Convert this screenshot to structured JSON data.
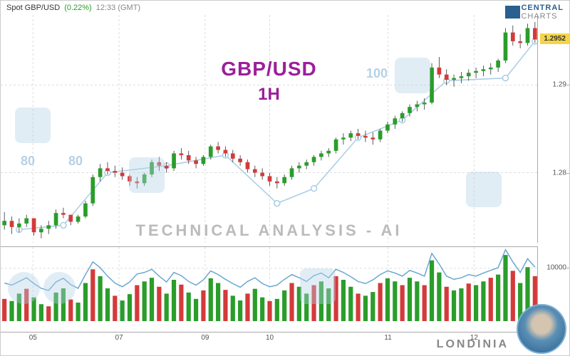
{
  "header": {
    "symbol": "Spot GBP/USD",
    "change_pct": "(0.22%)",
    "time": "12:33 (GMT)"
  },
  "logo": {
    "brand_bold": "CENTRAL",
    "brand_light": "CHARTS"
  },
  "overlay": {
    "symbol": "GBP/USD",
    "timeframe": "1H",
    "tech": "TECHNICAL  ANALYSIS - AI"
  },
  "footer": {
    "brand": "LONDINIA"
  },
  "colors": {
    "title": "#9b1f9b",
    "up": "#2a9d2a",
    "down": "#d43a3a",
    "wick": "#333333",
    "trend_line": "#a8cde5",
    "trend_marker": "#a8cde5",
    "vol_line": "#6aa8d0",
    "grid": "#dddddd",
    "axis": "#aaaaaa",
    "badge_bg": "#f5d547",
    "watermark": "rgba(180,210,230,0.45)"
  },
  "main_chart": {
    "type": "candlestick",
    "ylim": [
      1.272,
      1.298
    ],
    "yticks": [
      1.28,
      1.29
    ],
    "current_price": 1.2952,
    "candles": [
      [
        1.274,
        1.2755,
        1.2735,
        1.2745
      ],
      [
        1.2745,
        1.275,
        1.273,
        1.2738
      ],
      [
        1.2738,
        1.2748,
        1.2732,
        1.2742
      ],
      [
        1.2742,
        1.2752,
        1.2738,
        1.2748
      ],
      [
        1.2748,
        1.2745,
        1.2728,
        1.2732
      ],
      [
        1.2732,
        1.274,
        1.2725,
        1.2736
      ],
      [
        1.2736,
        1.2745,
        1.273,
        1.274
      ],
      [
        1.274,
        1.2758,
        1.2736,
        1.2754
      ],
      [
        1.2754,
        1.276,
        1.2748,
        1.2752
      ],
      [
        1.2752,
        1.275,
        1.274,
        1.2744
      ],
      [
        1.2744,
        1.2752,
        1.2742,
        1.275
      ],
      [
        1.275,
        1.2768,
        1.2748,
        1.2765
      ],
      [
        1.2765,
        1.2798,
        1.2762,
        1.2795
      ],
      [
        1.2795,
        1.281,
        1.279,
        1.2805
      ],
      [
        1.2805,
        1.2812,
        1.2798,
        1.2802
      ],
      [
        1.2802,
        1.2808,
        1.2795,
        1.28
      ],
      [
        1.28,
        1.2806,
        1.2792,
        1.2796
      ],
      [
        1.2796,
        1.2798,
        1.2785,
        1.279
      ],
      [
        1.279,
        1.2795,
        1.2782,
        1.2788
      ],
      [
        1.2788,
        1.28,
        1.2785,
        1.2798
      ],
      [
        1.2798,
        1.2815,
        1.2795,
        1.2812
      ],
      [
        1.2812,
        1.2818,
        1.2802,
        1.2808
      ],
      [
        1.2808,
        1.2812,
        1.28,
        1.2805
      ],
      [
        1.2805,
        1.2825,
        1.2802,
        1.2822
      ],
      [
        1.2822,
        1.2828,
        1.2815,
        1.282
      ],
      [
        1.282,
        1.2825,
        1.281,
        1.2814
      ],
      [
        1.2814,
        1.2818,
        1.2805,
        1.281
      ],
      [
        1.281,
        1.282,
        1.2808,
        1.2818
      ],
      [
        1.2818,
        1.2832,
        1.2815,
        1.283
      ],
      [
        1.283,
        1.2835,
        1.2822,
        1.2826
      ],
      [
        1.2826,
        1.283,
        1.2818,
        1.2822
      ],
      [
        1.2822,
        1.2826,
        1.2812,
        1.2816
      ],
      [
        1.2816,
        1.282,
        1.2808,
        1.2812
      ],
      [
        1.2812,
        1.2815,
        1.28,
        1.2804
      ],
      [
        1.2804,
        1.2808,
        1.2795,
        1.28
      ],
      [
        1.28,
        1.2805,
        1.2792,
        1.2796
      ],
      [
        1.2796,
        1.28,
        1.2785,
        1.279
      ],
      [
        1.279,
        1.2795,
        1.2782,
        1.2788
      ],
      [
        1.2788,
        1.2798,
        1.2785,
        1.2795
      ],
      [
        1.2795,
        1.2808,
        1.2792,
        1.2805
      ],
      [
        1.2805,
        1.2812,
        1.28,
        1.2808
      ],
      [
        1.2808,
        1.2815,
        1.2804,
        1.2812
      ],
      [
        1.2812,
        1.282,
        1.2808,
        1.2818
      ],
      [
        1.2818,
        1.2825,
        1.2814,
        1.2822
      ],
      [
        1.2822,
        1.2828,
        1.2818,
        1.2825
      ],
      [
        1.2825,
        1.284,
        1.2822,
        1.2838
      ],
      [
        1.2838,
        1.2845,
        1.2832,
        1.284
      ],
      [
        1.284,
        1.2848,
        1.2836,
        1.2845
      ],
      [
        1.2845,
        1.285,
        1.2838,
        1.2842
      ],
      [
        1.2842,
        1.2848,
        1.2835,
        1.284
      ],
      [
        1.284,
        1.2846,
        1.2832,
        1.2838
      ],
      [
        1.2838,
        1.285,
        1.2835,
        1.2848
      ],
      [
        1.2848,
        1.2858,
        1.2845,
        1.2855
      ],
      [
        1.2855,
        1.2865,
        1.285,
        1.2862
      ],
      [
        1.2862,
        1.287,
        1.2858,
        1.2868
      ],
      [
        1.2868,
        1.2878,
        1.2864,
        1.2875
      ],
      [
        1.2875,
        1.2882,
        1.287,
        1.2878
      ],
      [
        1.2878,
        1.2885,
        1.2872,
        1.288
      ],
      [
        1.288,
        1.2925,
        1.2878,
        1.292
      ],
      [
        1.292,
        1.2932,
        1.2908,
        1.2912
      ],
      [
        1.2912,
        1.2918,
        1.29,
        1.2906
      ],
      [
        1.2906,
        1.2912,
        1.2898,
        1.2908
      ],
      [
        1.2908,
        1.2915,
        1.2902,
        1.291
      ],
      [
        1.291,
        1.2918,
        1.2905,
        1.2914
      ],
      [
        1.2914,
        1.292,
        1.2908,
        1.2916
      ],
      [
        1.2916,
        1.2922,
        1.291,
        1.2918
      ],
      [
        1.2918,
        1.2925,
        1.2912,
        1.292
      ],
      [
        1.292,
        1.293,
        1.2915,
        1.2928
      ],
      [
        1.2928,
        1.2965,
        1.2925,
        1.296
      ],
      [
        1.296,
        1.2968,
        1.2945,
        1.295
      ],
      [
        1.295,
        1.2958,
        1.2942,
        1.2948
      ],
      [
        1.2948,
        1.297,
        1.2945,
        1.2965
      ],
      [
        1.2965,
        1.2972,
        1.2948,
        1.2952
      ]
    ],
    "trend_points": [
      [
        2,
        1.2735
      ],
      [
        8,
        1.274
      ],
      [
        14,
        1.28
      ],
      [
        22,
        1.2808
      ],
      [
        30,
        1.282
      ],
      [
        37,
        1.2765
      ],
      [
        42,
        1.2782
      ],
      [
        48,
        1.284
      ],
      [
        54,
        1.286
      ],
      [
        60,
        1.2905
      ],
      [
        68,
        1.2908
      ],
      [
        72,
        1.295
      ]
    ]
  },
  "volume_chart": {
    "type": "bar+line",
    "ylim": [
      0,
      14000
    ],
    "yticks": [
      10000
    ],
    "bars": [
      4200,
      3800,
      5200,
      6100,
      4500,
      3200,
      2800,
      5400,
      6200,
      4100,
      3500,
      7200,
      9800,
      8500,
      6200,
      4800,
      3900,
      5100,
      6800,
      7500,
      8200,
      6500,
      5200,
      7800,
      6900,
      5400,
      4200,
      5800,
      8100,
      7200,
      5900,
      4800,
      3900,
      5200,
      6100,
      4500,
      3800,
      4200,
      5800,
      7200,
      6500,
      5200,
      6800,
      7500,
      6200,
      8500,
      7800,
      6500,
      5200,
      4800,
      5500,
      7200,
      8100,
      7500,
      6800,
      8200,
      7500,
      6800,
      11500,
      9200,
      6500,
      5800,
      6200,
      7100,
      6800,
      7500,
      8200,
      8800,
      12500,
      9500,
      7200,
      10200,
      8500
    ],
    "line": [
      7200,
      6800,
      7500,
      8200,
      7100,
      6200,
      5800,
      7400,
      8100,
      6900,
      6200,
      8800,
      11200,
      10100,
      8500,
      7200,
      6500,
      7400,
      8900,
      9200,
      9800,
      8500,
      7400,
      9200,
      8600,
      7500,
      6800,
      7800,
      9500,
      8800,
      7900,
      7100,
      6400,
      7500,
      8200,
      7100,
      6500,
      6800,
      7900,
      8800,
      8200,
      7500,
      8600,
      9100,
      8200,
      9800,
      9200,
      8400,
      7500,
      7100,
      7800,
      8800,
      9500,
      9100,
      8500,
      9600,
      9100,
      8500,
      12800,
      10800,
      8500,
      7900,
      8200,
      8800,
      8500,
      9100,
      9600,
      10100,
      13500,
      11200,
      9200,
      11800,
      10200
    ]
  },
  "x_axis": {
    "ticks": [
      {
        "pos": 0.06,
        "label": "05"
      },
      {
        "pos": 0.22,
        "label": "07"
      },
      {
        "pos": 0.38,
        "label": "09"
      },
      {
        "pos": 0.5,
        "label": "10"
      },
      {
        "pos": 0.72,
        "label": "11"
      },
      {
        "pos": 0.88,
        "label": "12"
      }
    ]
  },
  "watermarks": {
    "num1": "80",
    "num2": "80",
    "num3": "100"
  }
}
